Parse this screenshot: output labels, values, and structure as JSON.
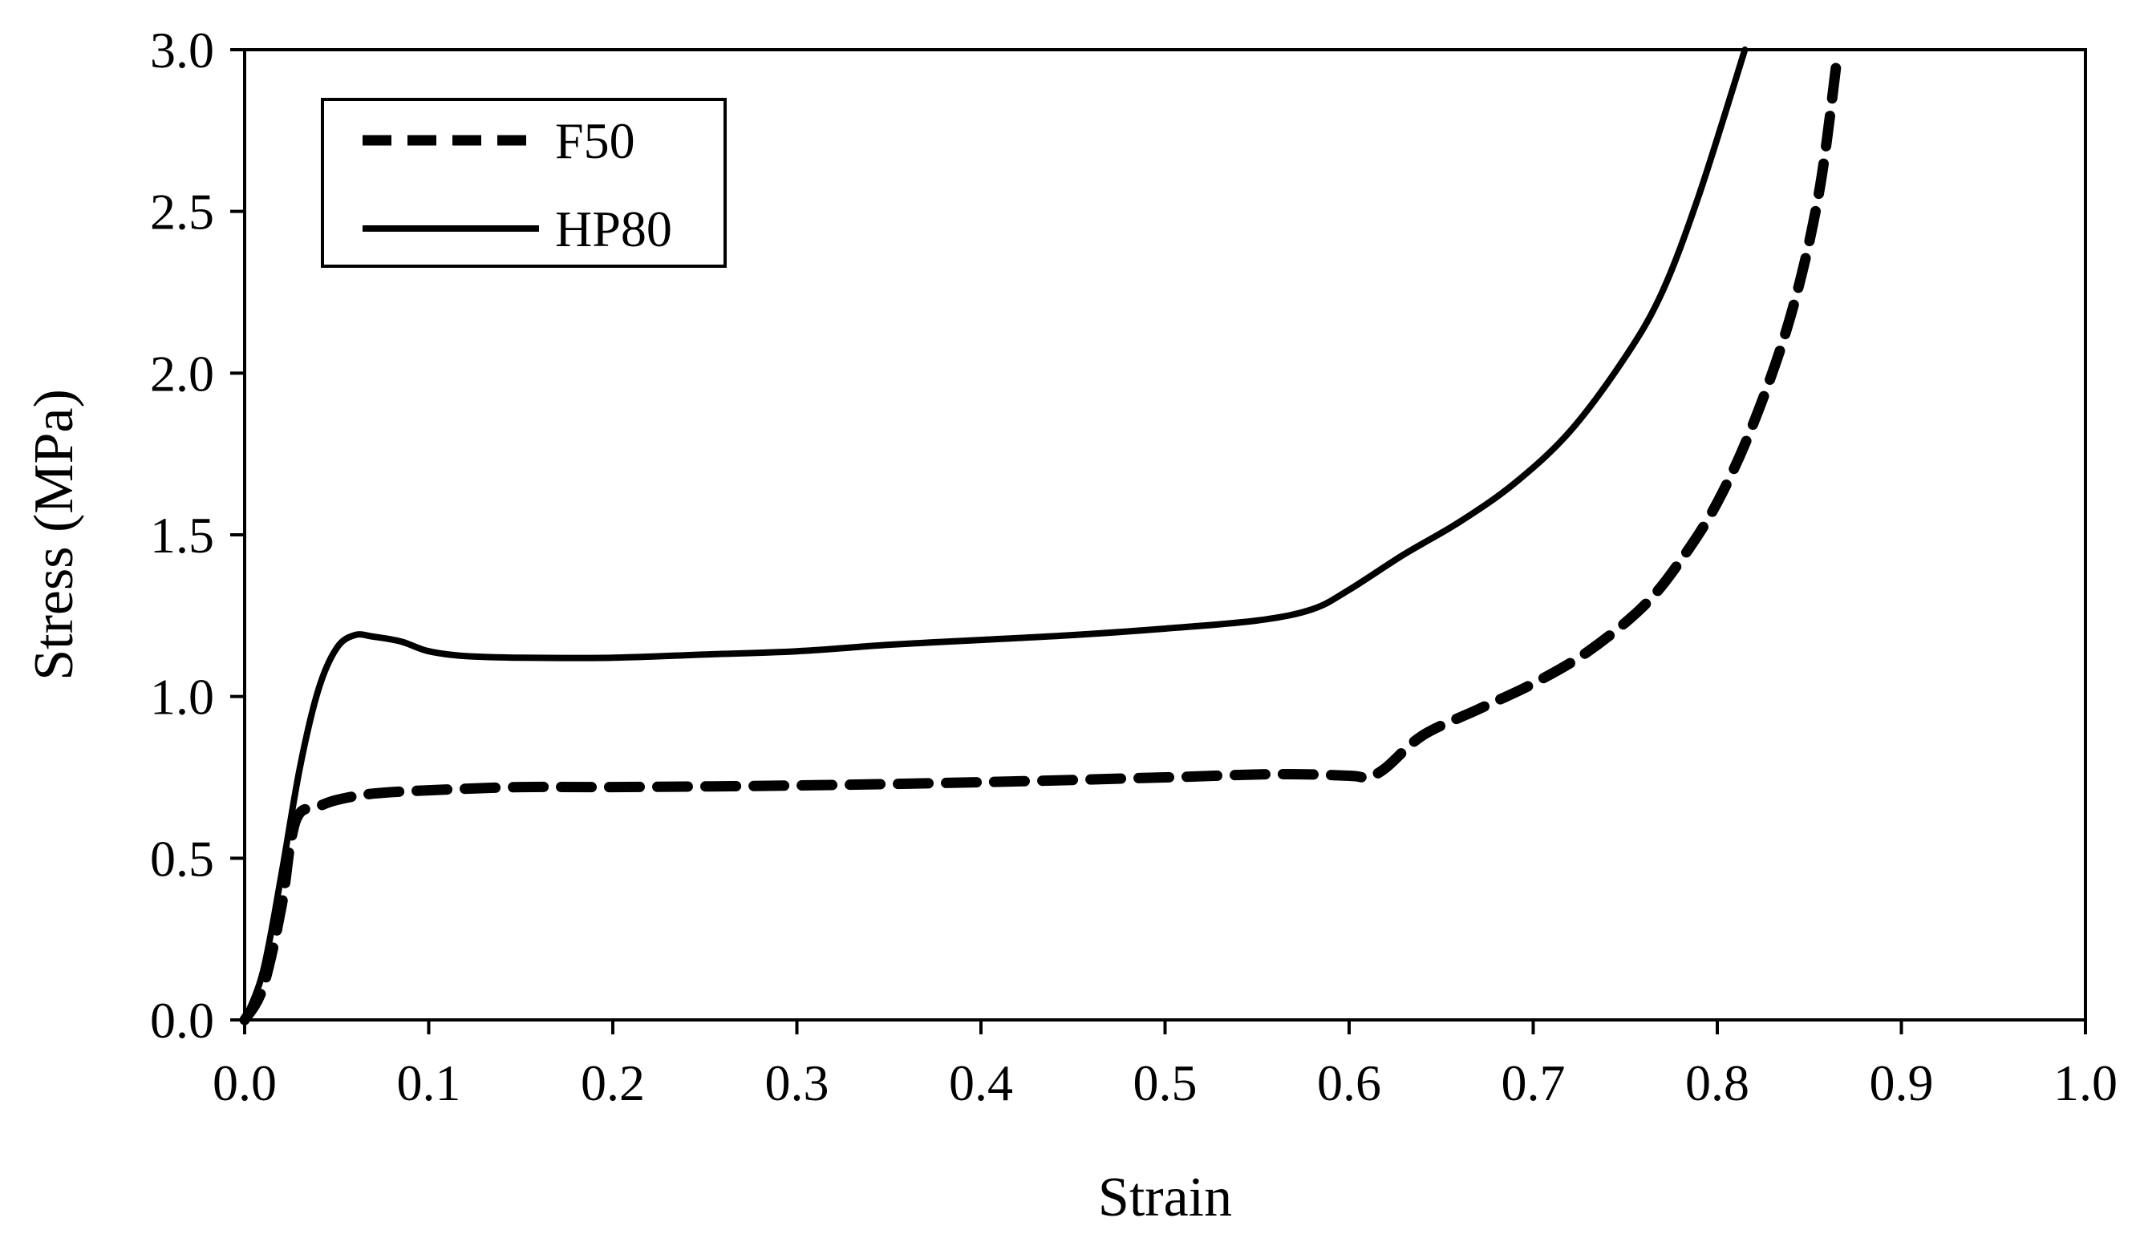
{
  "chart_data": {
    "type": "line",
    "title": "",
    "xlabel": "Strain",
    "ylabel": "Stress (MPa)",
    "xlim": [
      0.0,
      1.0
    ],
    "ylim": [
      0.0,
      3.0
    ],
    "xticks": [
      "0.0",
      "0.1",
      "0.2",
      "0.3",
      "0.4",
      "0.5",
      "0.6",
      "0.7",
      "0.8",
      "0.9",
      "1.0"
    ],
    "yticks": [
      "0.0",
      "0.5",
      "1.0",
      "1.5",
      "2.0",
      "2.5",
      "3.0"
    ],
    "grid": false,
    "legend_position": "top-left",
    "series": [
      {
        "name": "F50",
        "style": "dashed",
        "color": "#000000",
        "points": [
          [
            0.0,
            0.0
          ],
          [
            0.01,
            0.1
          ],
          [
            0.02,
            0.35
          ],
          [
            0.025,
            0.55
          ],
          [
            0.03,
            0.64
          ],
          [
            0.04,
            0.66
          ],
          [
            0.05,
            0.68
          ],
          [
            0.07,
            0.7
          ],
          [
            0.1,
            0.71
          ],
          [
            0.15,
            0.72
          ],
          [
            0.2,
            0.72
          ],
          [
            0.3,
            0.725
          ],
          [
            0.4,
            0.735
          ],
          [
            0.5,
            0.75
          ],
          [
            0.56,
            0.76
          ],
          [
            0.6,
            0.755
          ],
          [
            0.61,
            0.75
          ],
          [
            0.62,
            0.78
          ],
          [
            0.64,
            0.88
          ],
          [
            0.67,
            0.96
          ],
          [
            0.7,
            1.04
          ],
          [
            0.73,
            1.14
          ],
          [
            0.76,
            1.28
          ],
          [
            0.78,
            1.42
          ],
          [
            0.8,
            1.6
          ],
          [
            0.82,
            1.85
          ],
          [
            0.84,
            2.18
          ],
          [
            0.855,
            2.55
          ],
          [
            0.865,
            2.97
          ]
        ]
      },
      {
        "name": "HP80",
        "style": "solid",
        "color": "#000000",
        "points": [
          [
            0.0,
            0.0
          ],
          [
            0.01,
            0.15
          ],
          [
            0.02,
            0.45
          ],
          [
            0.03,
            0.78
          ],
          [
            0.04,
            1.02
          ],
          [
            0.05,
            1.15
          ],
          [
            0.06,
            1.19
          ],
          [
            0.07,
            1.185
          ],
          [
            0.085,
            1.17
          ],
          [
            0.1,
            1.14
          ],
          [
            0.12,
            1.125
          ],
          [
            0.15,
            1.12
          ],
          [
            0.2,
            1.12
          ],
          [
            0.25,
            1.13
          ],
          [
            0.3,
            1.14
          ],
          [
            0.35,
            1.16
          ],
          [
            0.4,
            1.175
          ],
          [
            0.45,
            1.19
          ],
          [
            0.5,
            1.21
          ],
          [
            0.55,
            1.235
          ],
          [
            0.58,
            1.27
          ],
          [
            0.6,
            1.33
          ],
          [
            0.63,
            1.44
          ],
          [
            0.66,
            1.54
          ],
          [
            0.69,
            1.66
          ],
          [
            0.72,
            1.82
          ],
          [
            0.75,
            2.05
          ],
          [
            0.77,
            2.25
          ],
          [
            0.79,
            2.55
          ],
          [
            0.815,
            3.0
          ]
        ]
      }
    ]
  }
}
